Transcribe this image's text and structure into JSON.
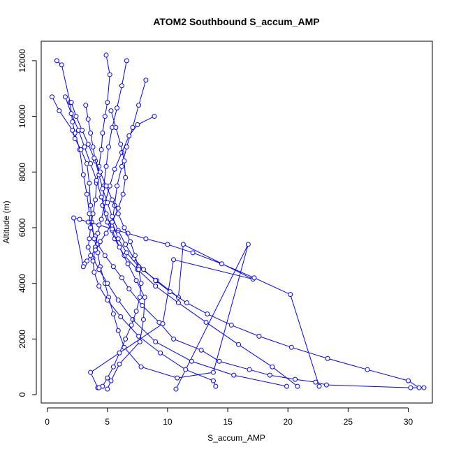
{
  "chart_data": {
    "type": "line",
    "title": "ATOM2 Southbound S_accum_AMP",
    "xlabel": "S_accum_AMP",
    "ylabel": "Altitude (m)",
    "xlim": [
      -0.5,
      32
    ],
    "ylim": [
      -300,
      12700
    ],
    "x_ticks": [
      0,
      5,
      10,
      15,
      20,
      25,
      30
    ],
    "y_ticks": [
      0,
      2000,
      4000,
      6000,
      8000,
      10000,
      12000
    ],
    "grid": false,
    "legend": "none",
    "line_color": "#0000ff",
    "point_color": "#0000ff",
    "series": [
      {
        "x": [
          0.8,
          1.2,
          1.9,
          2.1,
          2.3,
          2.7,
          3.0,
          3.3,
          3.5,
          3.6,
          4.0,
          4.2,
          4.8,
          5.5,
          6.2,
          6.8,
          7.9,
          9.3,
          10.5,
          12.8,
          14.3,
          16.8,
          18.5,
          20.6,
          22.3,
          23.2,
          30.2,
          31.3
        ],
        "y": [
          12000,
          11850,
          10500,
          9800,
          9400,
          8800,
          7900,
          7200,
          6500,
          6000,
          5700,
          5400,
          5000,
          4600,
          4200,
          3800,
          3200,
          2600,
          2000,
          1600,
          1200,
          900,
          700,
          550,
          450,
          350,
          250,
          250
        ]
      },
      {
        "x": [
          0.4,
          1.0,
          2.1,
          2.3,
          2.8,
          3.3,
          3.5,
          3.6,
          3.7,
          3.9,
          4.2,
          4.4,
          4.8,
          5.1,
          5.5,
          5.9,
          6.4,
          7.8,
          10.8,
          13.8,
          16.7,
          10.7
        ],
        "y": [
          10700,
          10200,
          9500,
          9200,
          8800,
          8300,
          7600,
          6800,
          6200,
          5600,
          5100,
          4600,
          4000,
          3500,
          2900,
          2300,
          1700,
          1000,
          600,
          800,
          5400,
          200
        ]
      },
      {
        "x": [
          4.9,
          5.2,
          5.0,
          4.8,
          4.6,
          4.5,
          4.3,
          4.1,
          4.0,
          3.8,
          3.6,
          3.5,
          3.4,
          3.8,
          4.3,
          5.0,
          5.9,
          7.1,
          9.0,
          12.0,
          15.5,
          19.9
        ],
        "y": [
          12200,
          11500,
          10500,
          10000,
          9400,
          8800,
          8200,
          7600,
          7000,
          6500,
          6000,
          5600,
          5300,
          4900,
          4500,
          4000,
          3400,
          2700,
          1900,
          1200,
          700,
          300
        ]
      },
      {
        "x": [
          6.6,
          6.2,
          5.8,
          5.4,
          5.1,
          4.9,
          4.7,
          4.6,
          5.0,
          5.6,
          6.4,
          7.5,
          9.0,
          10.9,
          13.2,
          15.9,
          18.7,
          20.8
        ],
        "y": [
          12000,
          11100,
          10300,
          9600,
          8900,
          8200,
          7500,
          6800,
          6200,
          5600,
          5000,
          4500,
          3900,
          3300,
          2600,
          1800,
          1000,
          300
        ]
      },
      {
        "x": [
          8.2,
          7.6,
          7.1,
          6.6,
          6.2,
          5.8,
          5.6,
          5.4,
          5.9,
          6.6,
          7.6,
          9.1,
          10.9,
          11.3,
          17.1,
          10.5,
          9.6,
          3.6,
          4.2
        ],
        "y": [
          11300,
          10400,
          9600,
          8900,
          8200,
          7500,
          6800,
          6200,
          5600,
          5100,
          4600,
          4100,
          3500,
          5400,
          4150,
          4850,
          2550,
          800,
          250
        ]
      },
      {
        "x": [
          8.9,
          7.5,
          6.8,
          6.2,
          5.6,
          5.2,
          4.8,
          4.5,
          4.2,
          4.0,
          3.8,
          3.9,
          4.3,
          5.0,
          6.1,
          7.6,
          9.4,
          11.5,
          13.8,
          14.0
        ],
        "y": [
          10000,
          9700,
          9300,
          8700,
          8100,
          7500,
          6900,
          6300,
          5800,
          5300,
          4800,
          4400,
          3900,
          3400,
          2800,
          2100,
          1500,
          900,
          500,
          300
        ]
      },
      {
        "x": [
          1.5,
          2.0,
          2.6,
          3.1,
          3.6,
          4.1,
          4.5,
          4.9,
          5.4,
          6.0,
          6.7,
          7.4,
          8.1,
          8.0,
          7.7,
          6.0,
          5.3,
          5.0
        ],
        "y": [
          10700,
          10100,
          9500,
          8900,
          8300,
          7700,
          7100,
          6500,
          5900,
          5300,
          4700,
          4100,
          3500,
          2700,
          1900,
          1100,
          500,
          200
        ]
      },
      {
        "x": [
          3.2,
          3.4,
          3.6,
          3.8,
          4.0,
          4.3,
          4.6,
          5.0,
          5.4,
          5.9,
          6.5,
          7.2,
          8.0,
          9.0,
          10.2,
          11.6,
          13.3,
          15.3,
          17.6,
          20.3,
          23.3,
          26.6,
          30.0,
          30.9
        ],
        "y": [
          10400,
          9900,
          9400,
          8900,
          8400,
          7900,
          7400,
          6900,
          6400,
          5900,
          5400,
          4900,
          4500,
          4100,
          3700,
          3300,
          2900,
          2500,
          2100,
          1700,
          1300,
          900,
          500,
          250
        ]
      },
      {
        "x": [
          5.3,
          5.7,
          6.1,
          6.4,
          6.5,
          6.3,
          5.9,
          5.4,
          4.9,
          4.4,
          4.0,
          3.6,
          3.3,
          3.1,
          3.0,
          2.2,
          2.7,
          3.4,
          4.3,
          5.4,
          6.7,
          8.2,
          10.0,
          12.1,
          14.5,
          17.2,
          20.2,
          22.6
        ],
        "y": [
          10200,
          9600,
          9000,
          8400,
          7800,
          7200,
          6700,
          6200,
          5800,
          5500,
          5200,
          5000,
          4800,
          4700,
          4600,
          6350,
          6300,
          6200,
          6100,
          5950,
          5800,
          5600,
          5400,
          5100,
          4700,
          4200,
          3600,
          300
        ]
      },
      {
        "x": [
          2.0,
          2.4,
          2.9,
          3.4,
          3.9,
          4.4,
          4.9,
          5.4,
          5.9,
          6.4,
          6.9,
          7.3,
          7.6,
          7.8,
          7.7,
          7.4,
          7.0,
          6.5,
          6.0,
          5.5,
          5.0,
          4.6,
          4.3
        ],
        "y": [
          10500,
          10000,
          9500,
          9000,
          8500,
          8000,
          7500,
          7000,
          6500,
          6000,
          5500,
          5000,
          4500,
          4000,
          3500,
          3000,
          2500,
          2000,
          1500,
          1000,
          600,
          300,
          250
        ]
      }
    ]
  }
}
